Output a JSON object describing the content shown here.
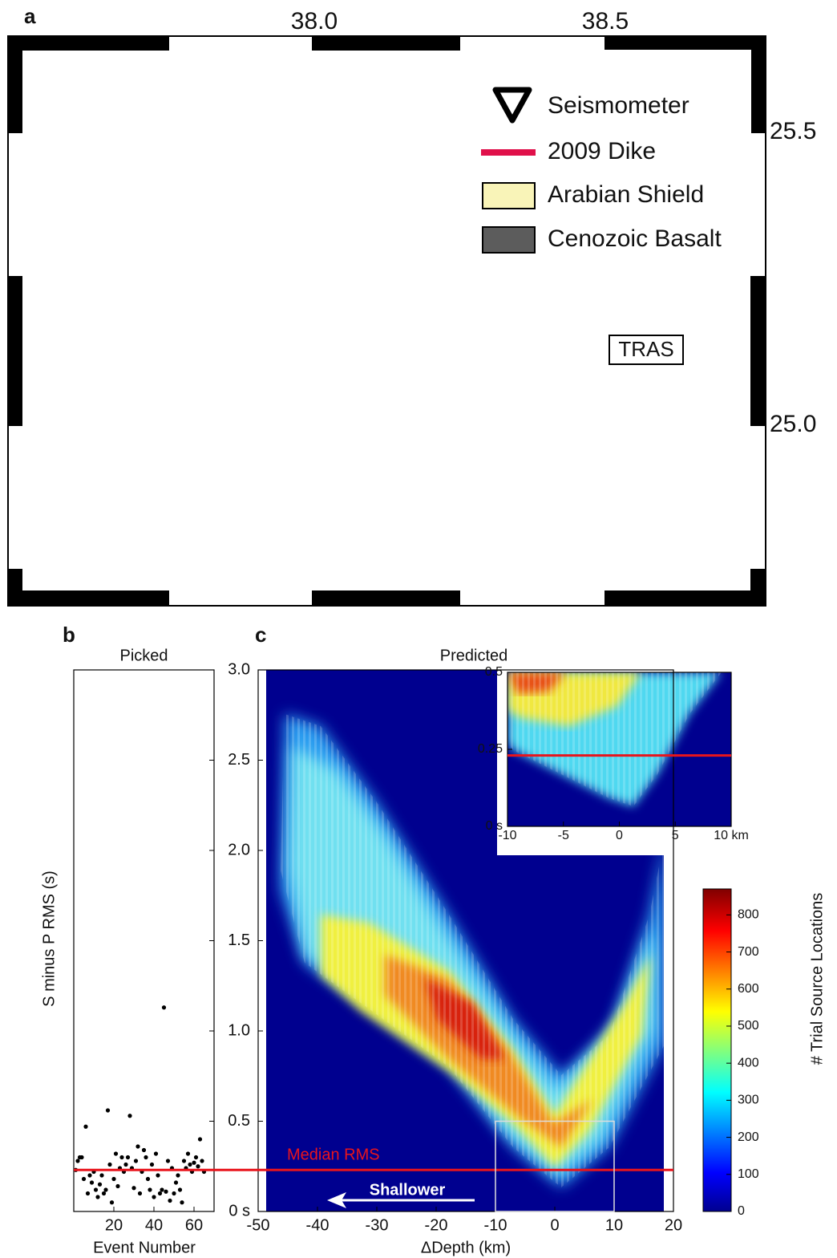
{
  "map": {
    "panel_label": "a",
    "top_labels": [
      "38.0",
      "38.5"
    ],
    "right_labels": [
      "25.5",
      "25.0"
    ],
    "legend": [
      "Seismometer",
      "2009 Dike",
      "Arabian Shield",
      "Cenozoic Basalt"
    ],
    "station_label": "TRAS"
  },
  "chart_data": [
    {
      "type": "scatter",
      "panel_label": "b",
      "title": "Picked",
      "x_label": "Event Number",
      "y_label": "S minus P RMS (s)",
      "x": [
        1,
        2,
        3,
        4,
        5,
        6,
        7,
        8,
        9,
        10,
        11,
        12,
        13,
        14,
        15,
        16,
        17,
        18,
        19,
        20,
        21,
        22,
        23,
        24,
        25,
        26,
        27,
        28,
        29,
        30,
        31,
        32,
        33,
        34,
        35,
        36,
        37,
        38,
        39,
        40,
        41,
        42,
        43,
        44,
        45,
        46,
        47,
        48,
        49,
        50,
        51,
        52,
        53,
        54,
        55,
        56,
        57,
        58,
        59,
        60,
        61,
        62,
        63,
        64,
        65
      ],
      "values": [
        0.23,
        0.28,
        0.3,
        0.3,
        0.18,
        0.47,
        0.1,
        0.2,
        0.16,
        0.22,
        0.12,
        0.08,
        0.15,
        0.2,
        0.1,
        0.12,
        0.56,
        0.26,
        0.05,
        0.18,
        0.32,
        0.14,
        0.24,
        0.3,
        0.22,
        0.26,
        0.3,
        0.53,
        0.24,
        0.13,
        0.28,
        0.36,
        0.1,
        0.22,
        0.34,
        0.3,
        0.18,
        0.12,
        0.26,
        0.08,
        0.32,
        0.2,
        0.1,
        0.12,
        1.13,
        0.11,
        0.28,
        0.06,
        0.24,
        0.1,
        0.16,
        0.2,
        0.12,
        0.05,
        0.28,
        0.24,
        0.32,
        0.26,
        0.22,
        0.27,
        0.3,
        0.25,
        0.4,
        0.28,
        0.22
      ],
      "color": "#000000",
      "xlim": [
        0,
        70
      ],
      "ylim": [
        0,
        3
      ],
      "xticks": [
        20,
        40,
        60
      ]
    },
    {
      "type": "heatmap",
      "panel_label": "c",
      "title": "Predicted",
      "x_label": "ΔDepth (km)",
      "xlim": [
        -50,
        20
      ],
      "ylim": [
        0,
        3
      ],
      "xticks": [
        -50,
        -40,
        -30,
        -20,
        -10,
        0,
        10,
        20
      ],
      "yticks": [
        {
          "value": 0,
          "label": "0 s"
        },
        0.5,
        {
          "value": 1,
          "label": "1.0"
        },
        1.5,
        {
          "value": 2,
          "label": "2.0"
        },
        2.5,
        {
          "value": 3,
          "label": "3.0"
        }
      ],
      "hline": {
        "value": 0.23,
        "label": "Median RMS",
        "color": "#e8141c"
      },
      "annotation": "Shallower",
      "colorbar": {
        "label": "# Trial Source Locations",
        "lim": [
          0,
          870
        ],
        "ticks": [
          0,
          100,
          200,
          300,
          400,
          500,
          600,
          700,
          800
        ]
      }
    },
    {
      "type": "heatmap",
      "xlim": [
        -10,
        10
      ],
      "ylim": [
        0,
        0.5
      ],
      "xticks": [
        -10,
        -5,
        0,
        5,
        {
          "value": 10,
          "label": "10 km"
        }
      ],
      "yticks": [
        {
          "value": 0,
          "label": "0 s"
        },
        0.25,
        0.5
      ],
      "hline": {
        "value": 0.23,
        "color": "#e8141c"
      }
    }
  ]
}
